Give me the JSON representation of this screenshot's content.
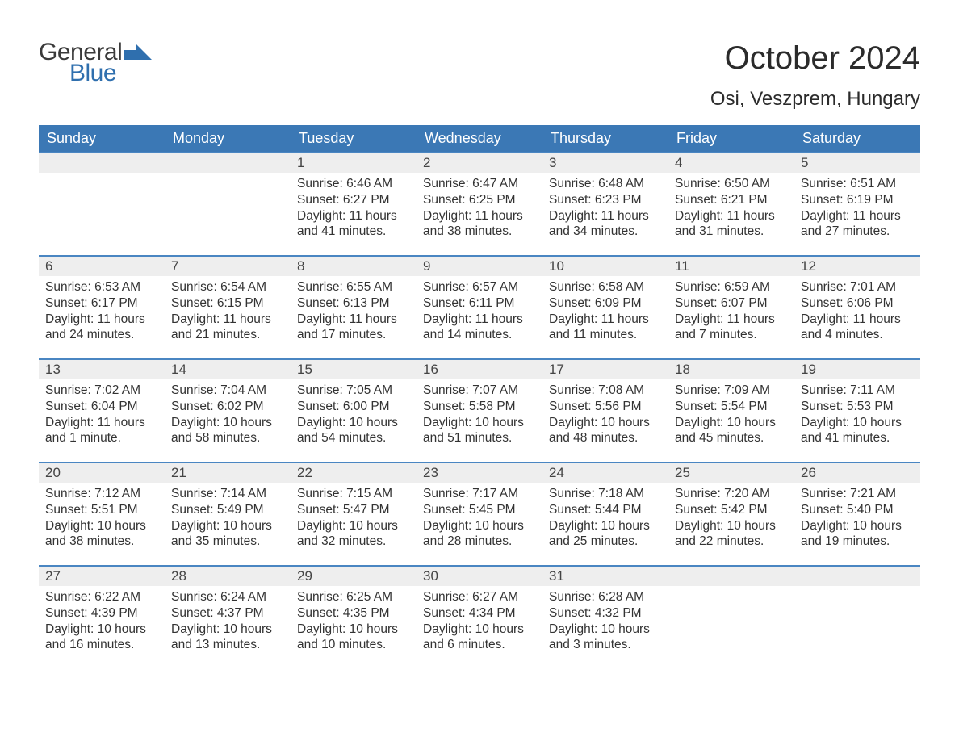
{
  "brand": {
    "word1": "General",
    "word2": "Blue",
    "text_color": "#3a3a3a",
    "accent_color": "#2f6fae"
  },
  "title": "October 2024",
  "location": "Osi, Veszprem, Hungary",
  "colors": {
    "header_bg": "#3b78b5",
    "header_text": "#ffffff",
    "daynum_bg": "#eeeeee",
    "daynum_border": "#4a86c2",
    "body_text": "#333333",
    "page_bg": "#ffffff"
  },
  "typography": {
    "month_title_fontsize": 40,
    "location_fontsize": 24,
    "weekday_fontsize": 18,
    "daynum_fontsize": 17,
    "body_fontsize": 15.5
  },
  "weekdays": [
    "Sunday",
    "Monday",
    "Tuesday",
    "Wednesday",
    "Thursday",
    "Friday",
    "Saturday"
  ],
  "weeks": [
    [
      null,
      null,
      {
        "n": "1",
        "sunrise": "6:46 AM",
        "sunset": "6:27 PM",
        "daylight": "11 hours and 41 minutes."
      },
      {
        "n": "2",
        "sunrise": "6:47 AM",
        "sunset": "6:25 PM",
        "daylight": "11 hours and 38 minutes."
      },
      {
        "n": "3",
        "sunrise": "6:48 AM",
        "sunset": "6:23 PM",
        "daylight": "11 hours and 34 minutes."
      },
      {
        "n": "4",
        "sunrise": "6:50 AM",
        "sunset": "6:21 PM",
        "daylight": "11 hours and 31 minutes."
      },
      {
        "n": "5",
        "sunrise": "6:51 AM",
        "sunset": "6:19 PM",
        "daylight": "11 hours and 27 minutes."
      }
    ],
    [
      {
        "n": "6",
        "sunrise": "6:53 AM",
        "sunset": "6:17 PM",
        "daylight": "11 hours and 24 minutes."
      },
      {
        "n": "7",
        "sunrise": "6:54 AM",
        "sunset": "6:15 PM",
        "daylight": "11 hours and 21 minutes."
      },
      {
        "n": "8",
        "sunrise": "6:55 AM",
        "sunset": "6:13 PM",
        "daylight": "11 hours and 17 minutes."
      },
      {
        "n": "9",
        "sunrise": "6:57 AM",
        "sunset": "6:11 PM",
        "daylight": "11 hours and 14 minutes."
      },
      {
        "n": "10",
        "sunrise": "6:58 AM",
        "sunset": "6:09 PM",
        "daylight": "11 hours and 11 minutes."
      },
      {
        "n": "11",
        "sunrise": "6:59 AM",
        "sunset": "6:07 PM",
        "daylight": "11 hours and 7 minutes."
      },
      {
        "n": "12",
        "sunrise": "7:01 AM",
        "sunset": "6:06 PM",
        "daylight": "11 hours and 4 minutes."
      }
    ],
    [
      {
        "n": "13",
        "sunrise": "7:02 AM",
        "sunset": "6:04 PM",
        "daylight": "11 hours and 1 minute."
      },
      {
        "n": "14",
        "sunrise": "7:04 AM",
        "sunset": "6:02 PM",
        "daylight": "10 hours and 58 minutes."
      },
      {
        "n": "15",
        "sunrise": "7:05 AM",
        "sunset": "6:00 PM",
        "daylight": "10 hours and 54 minutes."
      },
      {
        "n": "16",
        "sunrise": "7:07 AM",
        "sunset": "5:58 PM",
        "daylight": "10 hours and 51 minutes."
      },
      {
        "n": "17",
        "sunrise": "7:08 AM",
        "sunset": "5:56 PM",
        "daylight": "10 hours and 48 minutes."
      },
      {
        "n": "18",
        "sunrise": "7:09 AM",
        "sunset": "5:54 PM",
        "daylight": "10 hours and 45 minutes."
      },
      {
        "n": "19",
        "sunrise": "7:11 AM",
        "sunset": "5:53 PM",
        "daylight": "10 hours and 41 minutes."
      }
    ],
    [
      {
        "n": "20",
        "sunrise": "7:12 AM",
        "sunset": "5:51 PM",
        "daylight": "10 hours and 38 minutes."
      },
      {
        "n": "21",
        "sunrise": "7:14 AM",
        "sunset": "5:49 PM",
        "daylight": "10 hours and 35 minutes."
      },
      {
        "n": "22",
        "sunrise": "7:15 AM",
        "sunset": "5:47 PM",
        "daylight": "10 hours and 32 minutes."
      },
      {
        "n": "23",
        "sunrise": "7:17 AM",
        "sunset": "5:45 PM",
        "daylight": "10 hours and 28 minutes."
      },
      {
        "n": "24",
        "sunrise": "7:18 AM",
        "sunset": "5:44 PM",
        "daylight": "10 hours and 25 minutes."
      },
      {
        "n": "25",
        "sunrise": "7:20 AM",
        "sunset": "5:42 PM",
        "daylight": "10 hours and 22 minutes."
      },
      {
        "n": "26",
        "sunrise": "7:21 AM",
        "sunset": "5:40 PM",
        "daylight": "10 hours and 19 minutes."
      }
    ],
    [
      {
        "n": "27",
        "sunrise": "6:22 AM",
        "sunset": "4:39 PM",
        "daylight": "10 hours and 16 minutes."
      },
      {
        "n": "28",
        "sunrise": "6:24 AM",
        "sunset": "4:37 PM",
        "daylight": "10 hours and 13 minutes."
      },
      {
        "n": "29",
        "sunrise": "6:25 AM",
        "sunset": "4:35 PM",
        "daylight": "10 hours and 10 minutes."
      },
      {
        "n": "30",
        "sunrise": "6:27 AM",
        "sunset": "4:34 PM",
        "daylight": "10 hours and 6 minutes."
      },
      {
        "n": "31",
        "sunrise": "6:28 AM",
        "sunset": "4:32 PM",
        "daylight": "10 hours and 3 minutes."
      },
      null,
      null
    ]
  ],
  "labels": {
    "sunrise": "Sunrise:",
    "sunset": "Sunset:",
    "daylight": "Daylight:"
  }
}
